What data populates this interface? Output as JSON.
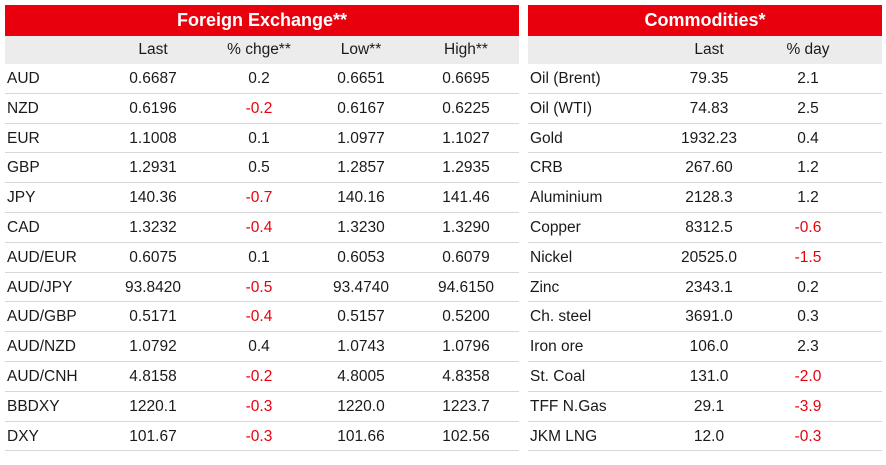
{
  "fx": {
    "title": "Foreign Exchange**",
    "headers": [
      "",
      "Last",
      "% chge**",
      "Low**",
      "High**"
    ],
    "rows": [
      [
        "AUD",
        "0.6687",
        "0.2",
        "0.6651",
        "0.6695"
      ],
      [
        "NZD",
        "0.6196",
        "-0.2",
        "0.6167",
        "0.6225"
      ],
      [
        "EUR",
        "1.1008",
        "0.1",
        "1.0977",
        "1.1027"
      ],
      [
        "GBP",
        "1.2931",
        "0.5",
        "1.2857",
        "1.2935"
      ],
      [
        "JPY",
        "140.36",
        "-0.7",
        "140.16",
        "141.46"
      ],
      [
        "CAD",
        "1.3232",
        "-0.4",
        "1.3230",
        "1.3290"
      ],
      [
        "AUD/EUR",
        "0.6075",
        "0.1",
        "0.6053",
        "0.6079"
      ],
      [
        "AUD/JPY",
        "93.8420",
        "-0.5",
        "93.4740",
        "94.6150"
      ],
      [
        "AUD/GBP",
        "0.5171",
        "-0.4",
        "0.5157",
        "0.5200"
      ],
      [
        "AUD/NZD",
        "1.0792",
        "0.4",
        "1.0743",
        "1.0796"
      ],
      [
        "AUD/CNH",
        "4.8158",
        "-0.2",
        "4.8005",
        "4.8358"
      ],
      [
        "BBDXY",
        "1220.1",
        "-0.3",
        "1220.0",
        "1223.7"
      ],
      [
        "DXY",
        "101.67",
        "-0.3",
        "101.66",
        "102.56"
      ]
    ]
  },
  "commodities": {
    "title": "Commodities*",
    "headers": [
      "",
      "Last",
      "% day"
    ],
    "rows": [
      [
        "Oil (Brent)",
        "79.35",
        "2.1"
      ],
      [
        "Oil (WTI)",
        "74.83",
        "2.5"
      ],
      [
        "Gold",
        "1932.23",
        "0.4"
      ],
      [
        "CRB",
        "267.60",
        "1.2"
      ],
      [
        "Aluminium",
        "2128.3",
        "1.2"
      ],
      [
        "Copper",
        "8312.5",
        "-0.6"
      ],
      [
        "Nickel",
        "20525.0",
        "-1.5"
      ],
      [
        "Zinc",
        "2343.1",
        "0.2"
      ],
      [
        "Ch. steel",
        "3691.0",
        "0.3"
      ],
      [
        "Iron ore",
        "106.0",
        "2.3"
      ],
      [
        "St. Coal",
        "131.0",
        "-2.0"
      ],
      [
        "TFF N.Gas",
        "29.1",
        "-3.9"
      ],
      [
        "JKM LNG",
        "12.0",
        "-0.3"
      ]
    ]
  },
  "colors": {
    "header_bg": "#e8000d",
    "negative": "#e8000d",
    "subheader_bg": "#ececec"
  }
}
